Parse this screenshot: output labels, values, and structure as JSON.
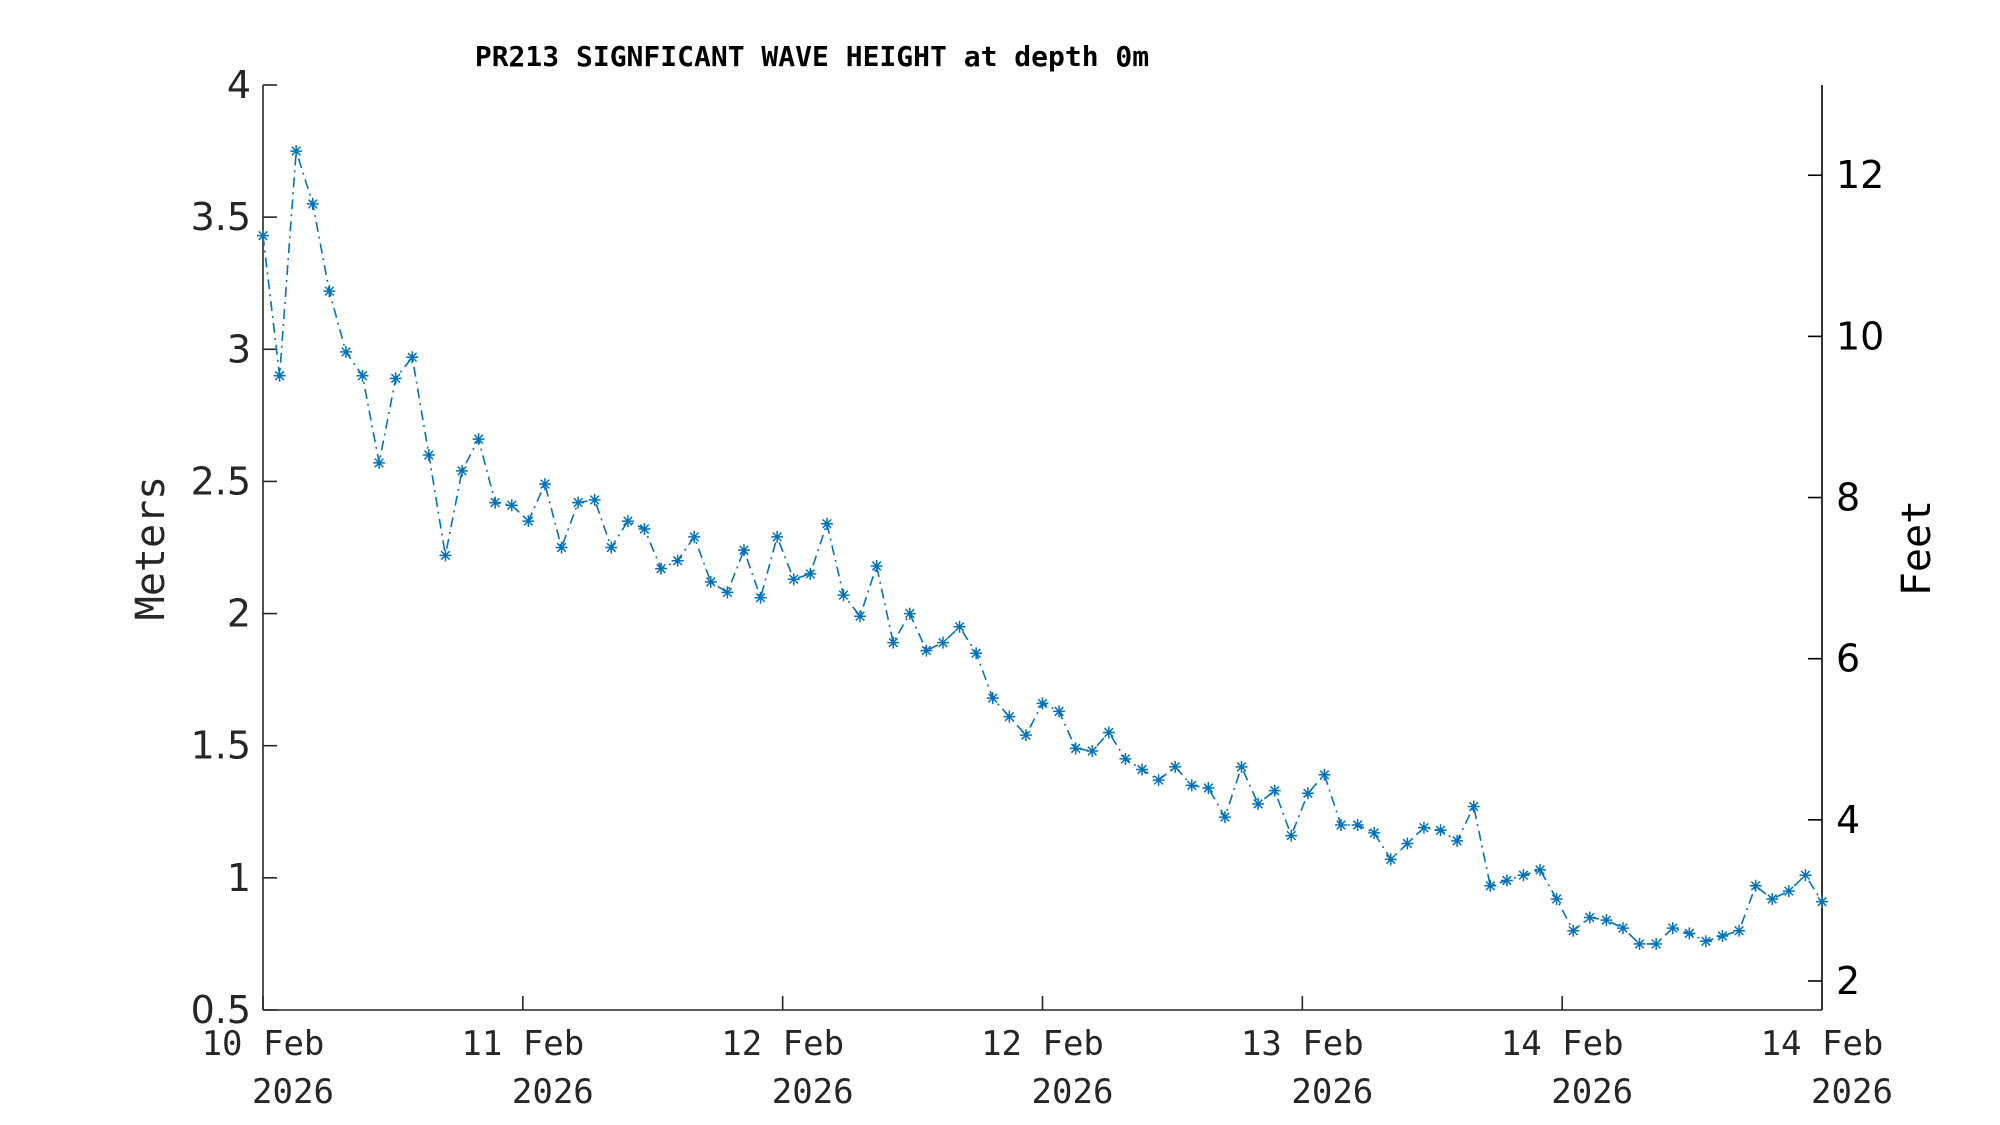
{
  "chart_data": {
    "type": "line",
    "title": "PR213 SIGNFICANT WAVE HEIGHT at depth 0m",
    "ylabel": "Meters",
    "y2label": "Feet",
    "ylim": [
      0.5,
      4
    ],
    "y2lim": [
      1.64,
      13.12
    ],
    "yticks": [
      "0.5",
      "1",
      "1.5",
      "2",
      "2.5",
      "3",
      "3.5",
      "4"
    ],
    "y2ticks": [
      "2",
      "4",
      "6",
      "8",
      "10",
      "12"
    ],
    "xticks": [
      {
        "line1": "10 Feb",
        "line2": "2026"
      },
      {
        "line1": "11 Feb",
        "line2": "2026"
      },
      {
        "line1": "12 Feb",
        "line2": "2026"
      },
      {
        "line1": "12 Feb",
        "line2": "2026"
      },
      {
        "line1": "13 Feb",
        "line2": "2026"
      },
      {
        "line1": "14 Feb",
        "line2": "2026"
      },
      {
        "line1": "14 Feb",
        "line2": "2026"
      }
    ],
    "grid": false,
    "legend": "none",
    "color": "#0072BD",
    "marker": "asterisk",
    "linestyle": "dash-dot",
    "series": [
      {
        "values": [
          3.43,
          2.9,
          3.75,
          3.55,
          3.22,
          2.99,
          2.9,
          2.57,
          2.89,
          2.97,
          2.6,
          2.22,
          2.54,
          2.66,
          2.42,
          2.41,
          2.35,
          2.49,
          2.25,
          2.42,
          2.43,
          2.25,
          2.35,
          2.32,
          2.17,
          2.2,
          2.29,
          2.12,
          2.08,
          2.24,
          2.06,
          2.29,
          2.13,
          2.15,
          2.34,
          2.07,
          1.99,
          2.18,
          1.89,
          2.0,
          1.86,
          1.89,
          1.95,
          1.85,
          1.68,
          1.61,
          1.54,
          1.66,
          1.63,
          1.49,
          1.48,
          1.55,
          1.45,
          1.41,
          1.37,
          1.42,
          1.35,
          1.34,
          1.23,
          1.42,
          1.28,
          1.33,
          1.16,
          1.32,
          1.39,
          1.2,
          1.2,
          1.17,
          1.07,
          1.13,
          1.19,
          1.18,
          1.14,
          1.27,
          0.97,
          0.99,
          1.01,
          1.03,
          0.92,
          0.8,
          0.85,
          0.84,
          0.81,
          0.75,
          0.75,
          0.81,
          0.79,
          0.76,
          0.78,
          0.8,
          0.97,
          0.92,
          0.95,
          1.01,
          0.91
        ]
      }
    ]
  }
}
